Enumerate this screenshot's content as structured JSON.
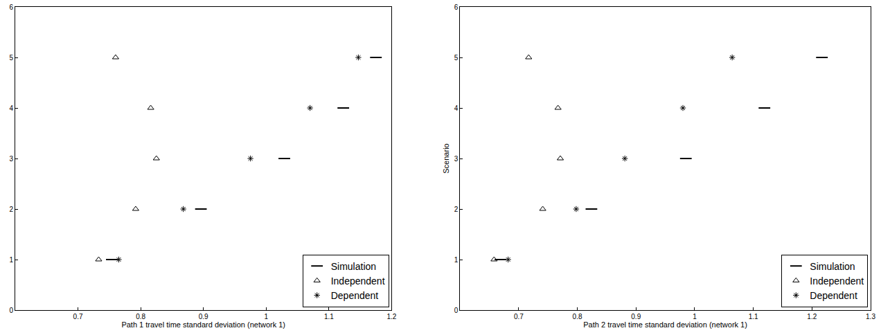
{
  "chart_data": [
    {
      "type": "scatter",
      "xlabel": "Path 1 travel time standard deviation (network 1)",
      "xlim": [
        0.6,
        1.2
      ],
      "xticks": [
        0.7,
        0.8,
        0.9,
        1,
        1.1,
        1.2
      ],
      "ylim": [
        0,
        6
      ],
      "yticks": [
        0,
        1,
        2,
        3,
        4,
        5,
        6
      ],
      "grid": false,
      "legend": "lower right",
      "series": [
        {
          "name": "Simulation",
          "color": "#000000",
          "marker": "dash",
          "x": [
            0.754,
            0.896,
            1.029,
            1.123,
            1.175
          ],
          "values": [
            1,
            2,
            3,
            4,
            5
          ]
        },
        {
          "name": "Independent",
          "color": "#000000",
          "marker": "triangle-open",
          "x": [
            0.733,
            0.792,
            0.825,
            0.816,
            0.76
          ],
          "values": [
            1,
            2,
            3,
            4,
            5
          ]
        },
        {
          "name": "Dependent",
          "color": "#000000",
          "marker": "asterisk",
          "x": [
            0.765,
            0.868,
            0.975,
            1.07,
            1.147
          ],
          "values": [
            1,
            2,
            3,
            4,
            5
          ]
        }
      ]
    },
    {
      "type": "scatter",
      "xlabel": "Path 2 travel time standard deviation (network 1)",
      "ylabel": "Scenario",
      "xlim": [
        0.6,
        1.3
      ],
      "xticks": [
        0.7,
        0.8,
        0.9,
        1,
        1.1,
        1.2,
        1.3
      ],
      "ylim": [
        0,
        6
      ],
      "yticks": [
        0,
        1,
        2,
        3,
        4,
        5,
        6
      ],
      "grid": false,
      "legend": "lower right",
      "series": [
        {
          "name": "Simulation",
          "color": "#000000",
          "marker": "dash",
          "x": [
            0.669,
            0.824,
            0.985,
            1.119,
            1.217
          ],
          "values": [
            1,
            2,
            3,
            4,
            5
          ]
        },
        {
          "name": "Independent",
          "color": "#000000",
          "marker": "triangle-open",
          "x": [
            0.658,
            0.741,
            0.771,
            0.767,
            0.717
          ],
          "values": [
            1,
            2,
            3,
            4,
            5
          ]
        },
        {
          "name": "Dependent",
          "color": "#000000",
          "marker": "asterisk",
          "x": [
            0.682,
            0.798,
            0.881,
            0.98,
            1.064
          ],
          "values": [
            1,
            2,
            3,
            4,
            5
          ]
        }
      ]
    }
  ]
}
